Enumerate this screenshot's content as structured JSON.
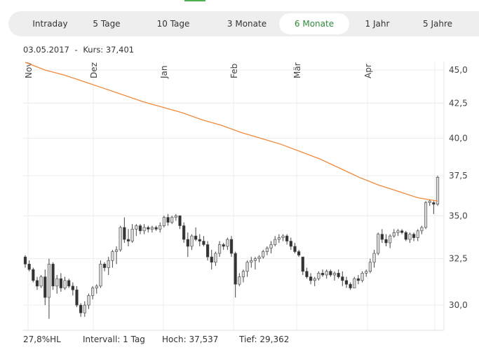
{
  "tabs": [
    {
      "label": "Intraday",
      "active": false
    },
    {
      "label": "5 Tage",
      "active": false
    },
    {
      "label": "10 Tage",
      "active": false
    },
    {
      "label": "3 Monate",
      "active": false
    },
    {
      "label": "6 Monate",
      "active": true
    },
    {
      "label": "1 Jahr",
      "active": false
    },
    {
      "label": "5 Jahre",
      "active": false
    }
  ],
  "header": {
    "date": "03.05.2017",
    "separator": "-",
    "kurs_label": "Kurs:",
    "kurs_value": "37,401"
  },
  "footer": {
    "hl": "27,8%HL",
    "interval": "Intervall: 1 Tag",
    "hoch_label": "Hoch:",
    "hoch": "37,537",
    "tief_label": "Tief:",
    "tief": "29,362"
  },
  "colors": {
    "accent": "#2e8b3a",
    "ma_line": "#f08a3c",
    "bear": "#333333",
    "bull_fill": "#d8d8d8",
    "grid": "#ececec"
  },
  "chart_data": {
    "type": "candlestick",
    "y_scale": "log",
    "ylim": [
      28.5,
      45.8
    ],
    "y_ticks": [
      "45,0",
      "42,5",
      "40,0",
      "37,5",
      "35,0",
      "32,5",
      "30,0"
    ],
    "y_tick_values": [
      45,
      42.5,
      40,
      37.5,
      35,
      32.5,
      30
    ],
    "x_ticks": [
      "Nov",
      "Dez",
      "Jan",
      "Feb",
      "Mär",
      "Apr",
      ""
    ],
    "grid": true,
    "ohlc": [
      [
        32.6,
        32.7,
        32.0,
        32.2
      ],
      [
        32.2,
        32.4,
        31.8,
        31.9
      ],
      [
        31.9,
        32.0,
        31.2,
        31.3
      ],
      [
        31.3,
        31.5,
        30.8,
        31.0
      ],
      [
        31.0,
        31.6,
        30.9,
        31.5
      ],
      [
        31.5,
        31.9,
        30.0,
        30.4
      ],
      [
        30.4,
        32.5,
        29.3,
        32.2
      ],
      [
        32.2,
        32.3,
        30.8,
        31.0
      ],
      [
        31.0,
        31.6,
        30.6,
        31.4
      ],
      [
        31.4,
        31.7,
        30.7,
        30.9
      ],
      [
        30.9,
        31.5,
        30.8,
        31.3
      ],
      [
        31.3,
        31.4,
        30.9,
        31.0
      ],
      [
        31.0,
        31.2,
        30.5,
        30.8
      ],
      [
        30.8,
        31.0,
        29.9,
        30.0
      ],
      [
        30.0,
        30.1,
        29.4,
        29.6
      ],
      [
        29.6,
        30.2,
        29.4,
        30.0
      ],
      [
        30.0,
        30.6,
        29.8,
        30.5
      ],
      [
        30.5,
        31.0,
        30.3,
        30.9
      ],
      [
        30.9,
        31.1,
        30.6,
        31.0
      ],
      [
        31.0,
        32.4,
        30.9,
        32.2
      ],
      [
        32.2,
        32.3,
        31.8,
        32.0
      ],
      [
        32.0,
        32.6,
        31.6,
        32.4
      ],
      [
        32.4,
        33.0,
        32.0,
        32.9
      ],
      [
        32.9,
        33.2,
        32.2,
        33.0
      ],
      [
        33.0,
        34.4,
        32.9,
        34.3
      ],
      [
        34.3,
        34.9,
        33.4,
        33.6
      ],
      [
        33.6,
        34.2,
        33.2,
        33.5
      ],
      [
        33.5,
        34.5,
        33.4,
        34.2
      ],
      [
        34.2,
        34.5,
        33.8,
        34.4
      ],
      [
        34.4,
        34.5,
        33.9,
        34.1
      ],
      [
        34.1,
        34.5,
        33.9,
        34.3
      ],
      [
        34.3,
        34.4,
        34.0,
        34.2
      ],
      [
        34.2,
        34.4,
        34.0,
        34.3
      ],
      [
        34.3,
        34.4,
        34.1,
        34.2
      ],
      [
        34.2,
        34.6,
        34.0,
        34.4
      ],
      [
        34.4,
        35.0,
        34.3,
        34.9
      ],
      [
        34.9,
        35.1,
        34.4,
        34.6
      ],
      [
        34.6,
        35.0,
        34.5,
        34.9
      ],
      [
        34.9,
        35.1,
        34.7,
        35.0
      ],
      [
        35.0,
        35.0,
        34.2,
        34.4
      ],
      [
        34.4,
        34.6,
        33.4,
        33.6
      ],
      [
        33.6,
        34.0,
        32.6,
        33.2
      ],
      [
        33.2,
        33.9,
        33.0,
        33.8
      ],
      [
        33.8,
        34.3,
        33.5,
        33.6
      ],
      [
        33.6,
        33.9,
        33.2,
        33.5
      ],
      [
        33.5,
        33.8,
        33.2,
        33.3
      ],
      [
        33.3,
        33.5,
        32.4,
        32.6
      ],
      [
        32.6,
        33.0,
        31.9,
        32.3
      ],
      [
        32.3,
        32.9,
        32.1,
        32.8
      ],
      [
        32.8,
        33.5,
        32.6,
        33.3
      ],
      [
        33.3,
        33.4,
        33.0,
        33.2
      ],
      [
        33.2,
        33.7,
        33.0,
        33.6
      ],
      [
        33.6,
        33.8,
        32.6,
        32.8
      ],
      [
        32.8,
        32.9,
        30.4,
        31.1
      ],
      [
        31.1,
        31.7,
        31.0,
        31.5
      ],
      [
        31.5,
        31.9,
        31.2,
        31.8
      ],
      [
        31.8,
        32.4,
        31.5,
        32.3
      ],
      [
        32.3,
        32.6,
        32.0,
        32.4
      ],
      [
        32.4,
        32.6,
        31.9,
        32.5
      ],
      [
        32.5,
        32.7,
        32.3,
        32.6
      ],
      [
        32.6,
        33.0,
        32.5,
        32.9
      ],
      [
        32.9,
        33.2,
        32.7,
        33.1
      ],
      [
        33.1,
        33.5,
        32.8,
        33.3
      ],
      [
        33.3,
        33.8,
        33.2,
        33.6
      ],
      [
        33.6,
        33.9,
        33.4,
        33.7
      ],
      [
        33.7,
        33.9,
        33.5,
        33.8
      ],
      [
        33.8,
        33.9,
        33.3,
        33.5
      ],
      [
        33.5,
        33.7,
        33.0,
        33.2
      ],
      [
        33.2,
        33.4,
        32.8,
        32.9
      ],
      [
        32.9,
        33.0,
        32.6,
        32.7
      ],
      [
        32.6,
        32.6,
        31.6,
        31.8
      ],
      [
        31.8,
        32.0,
        31.4,
        31.5
      ],
      [
        31.5,
        31.7,
        31.1,
        31.3
      ],
      [
        31.3,
        31.5,
        31.0,
        31.4
      ],
      [
        31.4,
        31.8,
        31.3,
        31.7
      ],
      [
        31.7,
        31.9,
        31.5,
        31.6
      ],
      [
        31.6,
        31.9,
        31.4,
        31.8
      ],
      [
        31.8,
        31.9,
        31.5,
        31.6
      ],
      [
        31.6,
        31.8,
        31.3,
        31.7
      ],
      [
        31.7,
        31.9,
        31.4,
        31.5
      ],
      [
        31.5,
        31.8,
        31.0,
        31.3
      ],
      [
        31.3,
        31.5,
        30.9,
        31.1
      ],
      [
        31.1,
        31.2,
        30.8,
        30.9
      ],
      [
        30.9,
        31.5,
        30.9,
        31.4
      ],
      [
        31.4,
        31.6,
        31.1,
        31.3
      ],
      [
        31.3,
        31.8,
        31.2,
        31.7
      ],
      [
        31.7,
        31.9,
        31.5,
        31.8
      ],
      [
        31.8,
        32.5,
        31.7,
        32.3
      ],
      [
        32.3,
        33.0,
        32.0,
        32.8
      ],
      [
        32.8,
        34.0,
        32.7,
        33.9
      ],
      [
        33.9,
        34.2,
        33.4,
        33.6
      ],
      [
        33.6,
        33.9,
        33.2,
        33.4
      ],
      [
        33.4,
        33.9,
        33.1,
        33.8
      ],
      [
        33.8,
        34.2,
        33.7,
        34.0
      ],
      [
        34.0,
        34.2,
        33.8,
        34.1
      ],
      [
        34.1,
        34.2,
        33.9,
        34.0
      ],
      [
        34.0,
        34.1,
        33.5,
        33.6
      ],
      [
        33.6,
        34.0,
        33.4,
        33.9
      ],
      [
        33.9,
        34.0,
        33.5,
        33.7
      ],
      [
        33.7,
        34.2,
        33.5,
        34.1
      ],
      [
        34.1,
        34.4,
        33.9,
        34.3
      ],
      [
        34.3,
        35.9,
        34.2,
        35.8
      ],
      [
        35.8,
        36.0,
        35.6,
        35.9
      ],
      [
        35.8,
        35.9,
        35.1,
        35.7
      ],
      [
        35.7,
        37.5,
        35.6,
        37.4
      ]
    ],
    "moving_average": [
      45.6,
      45.0,
      44.6,
      44.1,
      43.6,
      43.1,
      42.6,
      42.2,
      41.8,
      41.3,
      40.9,
      40.4,
      40.0,
      39.6,
      39.1,
      38.6,
      38.0,
      37.4,
      36.9,
      36.5,
      36.1,
      35.9
    ]
  }
}
